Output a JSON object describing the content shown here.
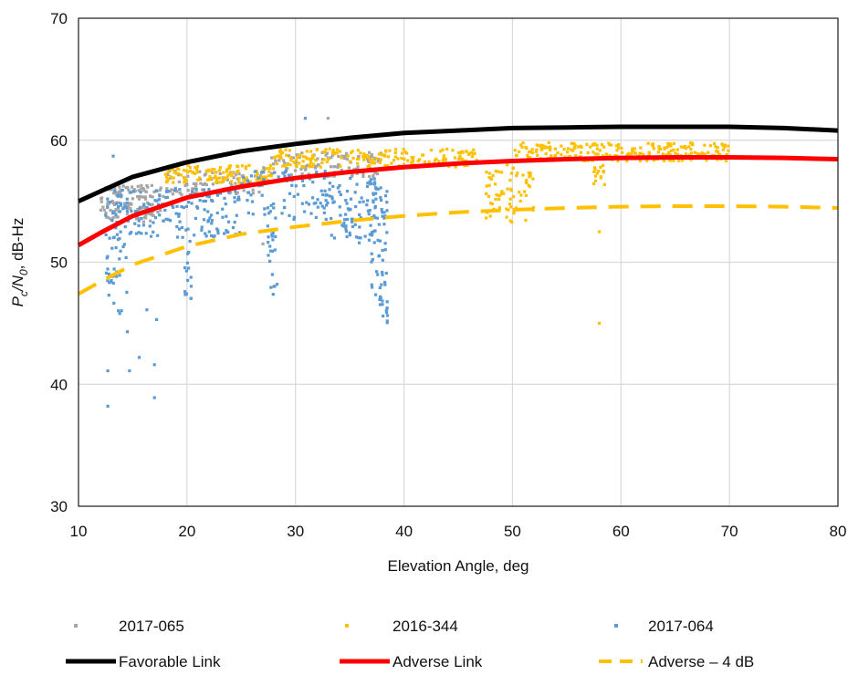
{
  "chart_data": {
    "type": "scatter",
    "title": "",
    "xlabel": "Elevation Angle, deg",
    "ylabel": {
      "base": "P",
      "sub1": "c",
      "mid": "/N",
      "sub2": "0",
      "tail": ", dB-Hz"
    },
    "xlim": [
      10,
      80
    ],
    "ylim": [
      30,
      70
    ],
    "x_ticks": [
      10,
      20,
      30,
      40,
      50,
      60,
      70,
      80
    ],
    "y_ticks": [
      30,
      40,
      50,
      60,
      70
    ],
    "grid": true,
    "legend_position": "bottom",
    "colors": {
      "2017-065": "#a6a6a6",
      "2016-344": "#ffc000",
      "2017-064": "#5b9bd5",
      "Favorable Link": "#000000",
      "Adverse Link": "#ff0000",
      "Adverse – 4 dB": "#ffc000"
    },
    "series": [
      {
        "name": "Favorable Link",
        "kind": "line",
        "x": [
          10,
          12,
          15,
          20,
          25,
          30,
          35,
          40,
          45,
          50,
          55,
          60,
          65,
          70,
          75,
          80
        ],
        "y": [
          55.0,
          55.8,
          57.0,
          58.2,
          59.1,
          59.7,
          60.2,
          60.6,
          60.8,
          61.0,
          61.05,
          61.1,
          61.1,
          61.1,
          61.0,
          60.8
        ]
      },
      {
        "name": "Adverse Link",
        "kind": "line",
        "x": [
          10,
          12,
          15,
          20,
          25,
          30,
          35,
          40,
          45,
          50,
          55,
          60,
          65,
          70,
          75,
          80
        ],
        "y": [
          51.4,
          52.4,
          53.8,
          55.3,
          56.2,
          56.9,
          57.4,
          57.8,
          58.1,
          58.3,
          58.45,
          58.55,
          58.6,
          58.6,
          58.55,
          58.45
        ]
      },
      {
        "name": "Adverse – 4 dB",
        "kind": "dashed-line",
        "x": [
          10,
          12,
          15,
          20,
          25,
          30,
          35,
          40,
          45,
          50,
          55,
          60,
          65,
          70,
          75,
          80
        ],
        "y": [
          47.4,
          48.4,
          49.8,
          51.3,
          52.3,
          52.9,
          53.4,
          53.8,
          54.1,
          54.3,
          54.45,
          54.55,
          54.6,
          54.6,
          54.55,
          54.45
        ]
      },
      {
        "name": "2017-065",
        "kind": "points",
        "bands": [
          {
            "x0": 12,
            "x1": 18,
            "y0": 53.3,
            "y1": 56.3,
            "n": 140
          },
          {
            "x0": 18,
            "x1": 27,
            "y0": 55.5,
            "y1": 57.5,
            "n": 100
          },
          {
            "x0": 27,
            "x1": 38,
            "y0": 57.0,
            "y1": 59.0,
            "n": 110
          }
        ],
        "points": [
          [
            33,
            61.8
          ],
          [
            27,
            51.5
          ],
          [
            28,
            48.0
          ]
        ]
      },
      {
        "name": "2016-344",
        "kind": "points",
        "bands": [
          {
            "x0": 18,
            "x1": 28,
            "y0": 56.5,
            "y1": 58.0,
            "n": 120
          },
          {
            "x0": 28,
            "x1": 47,
            "y0": 57.8,
            "y1": 59.3,
            "n": 190
          },
          {
            "x0": 50,
            "x1": 70,
            "y0": 58.3,
            "y1": 59.8,
            "n": 240
          },
          {
            "x0": 47.5,
            "x1": 52,
            "y0": 53.2,
            "y1": 58.0,
            "n": 70
          },
          {
            "x0": 57.5,
            "x1": 58.5,
            "y0": 56.2,
            "y1": 58.0,
            "n": 15
          }
        ],
        "points": [
          [
            58,
            52.5
          ],
          [
            58,
            45.0
          ]
        ]
      },
      {
        "name": "2017-064",
        "kind": "points",
        "bands": [
          {
            "x0": 12.5,
            "x1": 25,
            "y0": 52.0,
            "y1": 56.0,
            "n": 170
          },
          {
            "x0": 25,
            "x1": 33,
            "y0": 53.5,
            "y1": 57.5,
            "n": 80
          },
          {
            "x0": 33,
            "x1": 37.5,
            "y0": 51.5,
            "y1": 57.0,
            "n": 80
          },
          {
            "x0": 37,
            "x1": 38.5,
            "y0": 45.0,
            "y1": 56.5,
            "n": 70
          },
          {
            "x0": 27.3,
            "x1": 28.3,
            "y0": 47.0,
            "y1": 55.0,
            "n": 25
          },
          {
            "x0": 19.8,
            "x1": 20.4,
            "y0": 47.0,
            "y1": 53.0,
            "n": 15
          },
          {
            "x0": 12.5,
            "x1": 14.5,
            "y0": 46.0,
            "y1": 52.0,
            "n": 30
          }
        ],
        "points": [
          [
            13.2,
            58.7
          ],
          [
            30.9,
            61.8
          ],
          [
            12.7,
            41.1
          ],
          [
            12.7,
            38.2
          ],
          [
            14.7,
            41.1
          ],
          [
            17.0,
            41.6
          ],
          [
            17.0,
            38.9
          ],
          [
            15.6,
            42.2
          ],
          [
            14.5,
            44.3
          ],
          [
            13.8,
            45.8
          ],
          [
            16.3,
            46.1
          ],
          [
            17.2,
            45.3
          ],
          [
            12.8,
            47.3
          ]
        ]
      }
    ],
    "legend": [
      {
        "label": "2017-065",
        "marker": "point",
        "color": "#a6a6a6"
      },
      {
        "label": "2016-344",
        "marker": "point",
        "color": "#ffc000"
      },
      {
        "label": "2017-064",
        "marker": "point",
        "color": "#5b9bd5"
      },
      {
        "label": "Favorable Link",
        "marker": "line",
        "color": "#000000"
      },
      {
        "label": "Adverse Link",
        "marker": "line",
        "color": "#ff0000"
      },
      {
        "label": "Adverse – 4 dB",
        "marker": "dash",
        "color": "#ffc000"
      }
    ]
  }
}
